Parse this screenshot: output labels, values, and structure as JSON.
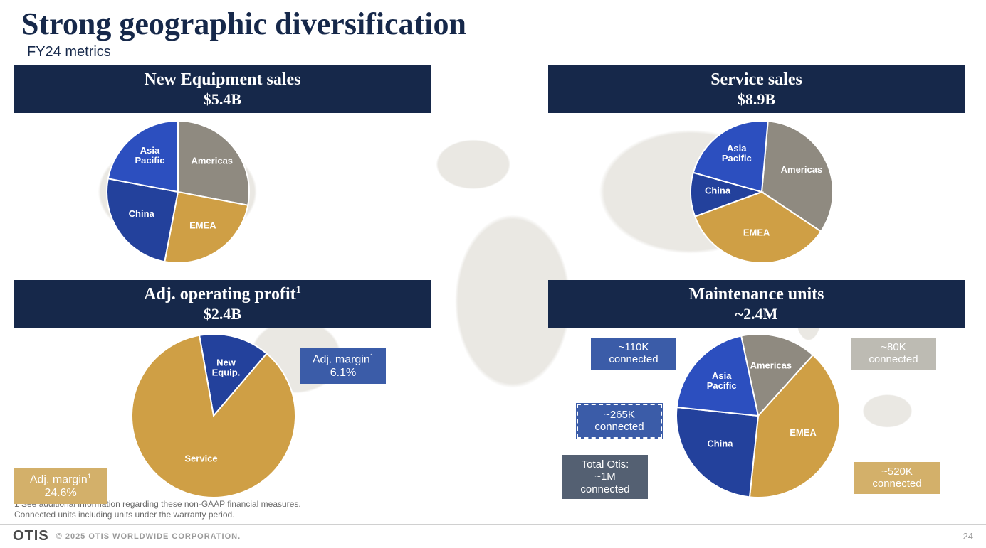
{
  "page": {
    "title": "Strong geographic diversification",
    "subtitle": "FY24 metrics",
    "footnote1": "1 See additional information regarding these non-GAAP financial measures.",
    "footnote2": "Connected units including units under the warranty period.",
    "logo": "OTIS",
    "copyright": "© 2025 OTIS WORLDWIDE CORPORATION.",
    "pagenum": "24"
  },
  "colors": {
    "navy": "#16284a",
    "americas": "#8f8a80",
    "emea": "#cf9f45",
    "china": "#23419c",
    "asiapac": "#2c4fbf",
    "service_gold": "#cf9f45",
    "newequip_blue": "#23419c",
    "callout_blue": "#3b5ca8",
    "callout_gold": "#d3b06a",
    "callout_grey": "#bdbbb3",
    "callout_dark": "#546072",
    "slice_stroke": "#ffffff"
  },
  "charts": {
    "new_equipment": {
      "title": "New Equipment sales",
      "value": "$5.4B",
      "type": "pie",
      "radius": 100,
      "slices": [
        {
          "label": "Americas",
          "pct": 28,
          "color": "#8f8a80"
        },
        {
          "label": "EMEA",
          "pct": 25,
          "color": "#cf9f45"
        },
        {
          "label": "China",
          "pct": 25,
          "color": "#23419c"
        },
        {
          "label": "Asia Pacific",
          "pct": 22,
          "color": "#2c4fbf"
        }
      ]
    },
    "service_sales": {
      "title": "Service sales",
      "value": "$8.9B",
      "type": "pie",
      "radius": 100,
      "slices": [
        {
          "label": "Americas",
          "pct": 33,
          "color": "#8f8a80"
        },
        {
          "label": "EMEA",
          "pct": 35,
          "color": "#cf9f45"
        },
        {
          "label": "China",
          "pct": 10,
          "color": "#23419c"
        },
        {
          "label": "Asia Pacific",
          "pct": 22,
          "color": "#2c4fbf"
        }
      ]
    },
    "adj_profit": {
      "title_html": "Adj. operating profit<sup>1</sup>",
      "title": "Adj. operating profit¹",
      "value": "$2.4B",
      "type": "pie",
      "radius": 115,
      "slices": [
        {
          "label": "New Equip.",
          "pct": 14,
          "color": "#23419c"
        },
        {
          "label": "Service",
          "pct": 86,
          "color": "#cf9f45"
        }
      ],
      "callouts": {
        "new_equip_margin": {
          "line1": "Adj. margin¹",
          "line2": "6.1%",
          "bg": "#3b5ca8"
        },
        "service_margin": {
          "line1": "Adj. margin¹",
          "line2": "24.6%",
          "bg": "#d3b06a"
        }
      }
    },
    "maintenance": {
      "title": "Maintenance units",
      "value": "~2.4M",
      "type": "pie",
      "radius": 115,
      "slices": [
        {
          "label": "Americas",
          "pct": 15,
          "color": "#8f8a80"
        },
        {
          "label": "EMEA",
          "pct": 40,
          "color": "#cf9f45"
        },
        {
          "label": "China",
          "pct": 25,
          "color": "#23419c"
        },
        {
          "label": "Asia Pacific",
          "pct": 20,
          "color": "#2c4fbf"
        }
      ],
      "callouts": {
        "asiapac": {
          "line1": "~110K",
          "line2": "connected",
          "bg": "#3b5ca8"
        },
        "americas": {
          "line1": "~80K",
          "line2": "connected",
          "bg": "#bdbbb3"
        },
        "china": {
          "line1": "~265K",
          "line2": "connected",
          "bg": "#3b5ca8",
          "dashed": true
        },
        "emea": {
          "line1": "~520K",
          "line2": "connected",
          "bg": "#d3b06a"
        },
        "total": {
          "line1": "Total Otis:",
          "line2": "~1M",
          "line3": "connected",
          "bg": "#546072"
        }
      }
    }
  }
}
